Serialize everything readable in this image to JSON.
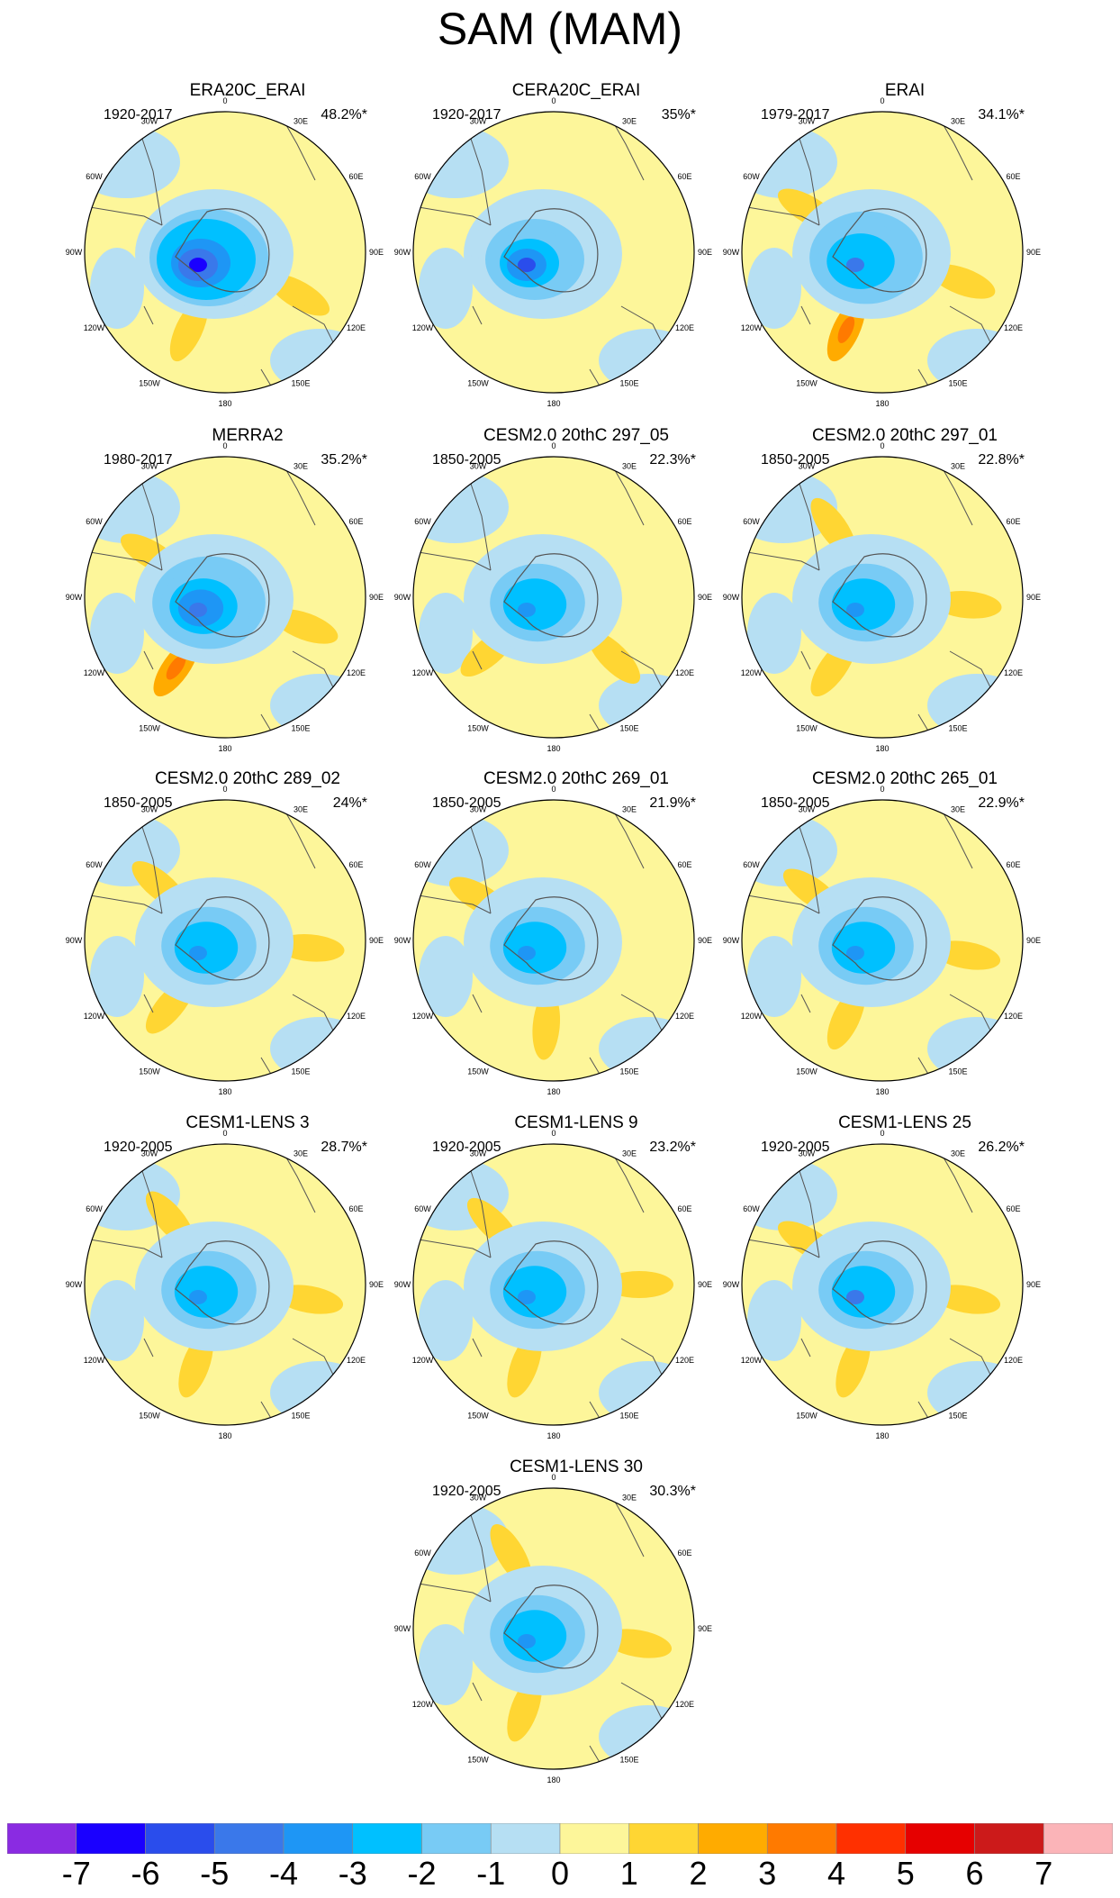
{
  "figure_title": "SAM (MAM)",
  "chart_data": {
    "type": "contour-map-panels",
    "projection": "south-polar-stereographic",
    "panels": [
      {
        "title": "ERA20C_ERAI",
        "period": "1920-2017",
        "variance": "48.2%*",
        "min_value": -6.4,
        "ring": [
          -5,
          -4,
          -3,
          -3,
          -2,
          -1,
          -1
        ],
        "lobes": [
          {
            "lon": 120,
            "value": 1.4
          },
          {
            "lon": 205,
            "value": 1.2
          }
        ]
      },
      {
        "title": "CERA20C_ERAI",
        "period": "1920-2017",
        "variance": "35%*",
        "min_value": -5.2,
        "ring": [
          -4,
          -3,
          -2,
          -2,
          -1,
          -1,
          -1
        ],
        "lobes": []
      },
      {
        "title": "ERAI",
        "period": "1979-2017",
        "variance": "34.1%*",
        "min_value": -4.5,
        "ring": [
          -3,
          -3,
          -2,
          -2,
          -1,
          -1
        ],
        "lobes": [
          {
            "lon": 300,
            "value": 1.6
          },
          {
            "lon": 110,
            "value": 1.6
          },
          {
            "lon": 205,
            "value": 2.3
          }
        ]
      },
      {
        "title": "MERRA2",
        "period": "1980-2017",
        "variance": "35.2%*",
        "min_value": -4.8,
        "ring": [
          -4,
          -3,
          -2,
          -2,
          -1,
          -1
        ],
        "lobes": [
          {
            "lon": 300,
            "value": 1.5
          },
          {
            "lon": 110,
            "value": 1.8
          },
          {
            "lon": 215,
            "value": 2.2
          }
        ]
      },
      {
        "title": "CESM2.0 20thC 297_05",
        "period": "1850-2005",
        "variance": "22.3%*",
        "min_value": -3.4,
        "ring": [
          -3,
          -2,
          -1,
          -1
        ],
        "lobes": [
          {
            "lon": 230,
            "value": 1.6
          },
          {
            "lon": 135,
            "value": 1.4
          }
        ]
      },
      {
        "title": "CESM2.0 20thC 297_01",
        "period": "1850-2005",
        "variance": "22.8%*",
        "min_value": -3.3,
        "ring": [
          -3,
          -2,
          -1,
          -1
        ],
        "lobes": [
          {
            "lon": 95,
            "value": 1.4
          },
          {
            "lon": 215,
            "value": 1.5
          },
          {
            "lon": 325,
            "value": 1.2
          }
        ]
      },
      {
        "title": "CESM2.0 20thC 289_02",
        "period": "1850-2005",
        "variance": "24%*",
        "min_value": -3.2,
        "ring": [
          -3,
          -2,
          -1,
          -1
        ],
        "lobes": [
          {
            "lon": 310,
            "value": 1.5
          },
          {
            "lon": 95,
            "value": 1.5
          },
          {
            "lon": 220,
            "value": 1.4
          }
        ]
      },
      {
        "title": "CESM2.0 20thC 269_01",
        "period": "1850-2005",
        "variance": "21.9%*",
        "min_value": -3.2,
        "ring": [
          -3,
          -2,
          -1,
          -1
        ],
        "lobes": [
          {
            "lon": 185,
            "value": 1.5
          },
          {
            "lon": 300,
            "value": 1.3
          }
        ]
      },
      {
        "title": "CESM2.0 20thC 265_01",
        "period": "1850-2005",
        "variance": "22.9%*",
        "min_value": -3.6,
        "ring": [
          -3,
          -2,
          -1,
          -1
        ],
        "lobes": [
          {
            "lon": 305,
            "value": 1.5
          },
          {
            "lon": 100,
            "value": 1.4
          },
          {
            "lon": 205,
            "value": 1.5
          }
        ]
      },
      {
        "title": "CESM1-LENS 3",
        "period": "1920-2005",
        "variance": "28.7%*",
        "min_value": -3.7,
        "ring": [
          -3,
          -2,
          -1,
          -1
        ],
        "lobes": [
          {
            "lon": 100,
            "value": 1.5
          },
          {
            "lon": 200,
            "value": 1.7
          },
          {
            "lon": 320,
            "value": 1.2
          }
        ]
      },
      {
        "title": "CESM1-LENS 9",
        "period": "1920-2005",
        "variance": "23.2%*",
        "min_value": -3.5,
        "ring": [
          -3,
          -2,
          -1,
          -1
        ],
        "lobes": [
          {
            "lon": 315,
            "value": 1.5
          },
          {
            "lon": 90,
            "value": 1.4
          },
          {
            "lon": 200,
            "value": 1.5
          }
        ]
      },
      {
        "title": "CESM1-LENS 25",
        "period": "1920-2005",
        "variance": "26.2%*",
        "min_value": -4.2,
        "ring": [
          -3,
          -2,
          -1,
          -1
        ],
        "lobes": [
          {
            "lon": 300,
            "value": 1.5
          },
          {
            "lon": 100,
            "value": 1.4
          },
          {
            "lon": 200,
            "value": 1.6
          }
        ]
      },
      {
        "title": "CESM1-LENS 30",
        "period": "1920-2005",
        "variance": "30.3%*",
        "min_value": -3.9,
        "ring": [
          -3,
          -2,
          -1,
          -1
        ],
        "lobes": [
          {
            "lon": 330,
            "value": 1.5
          },
          {
            "lon": 100,
            "value": 1.3
          },
          {
            "lon": 200,
            "value": 1.8
          }
        ]
      }
    ],
    "longitude_labels": [
      "0",
      "30E",
      "60E",
      "90E",
      "120E",
      "150E",
      "180",
      "150W",
      "120W",
      "90W",
      "60W",
      "30W"
    ],
    "colorbar": {
      "levels": [
        -7,
        -6,
        -5,
        -4,
        -3,
        -2,
        -1,
        0,
        1,
        2,
        3,
        4,
        5,
        6,
        7
      ],
      "labels": [
        "-7",
        "-6",
        "-5",
        "-4",
        "-3",
        "-2",
        "-1",
        "0",
        "1",
        "2",
        "3",
        "4",
        "5",
        "6",
        "7"
      ],
      "colors": [
        "#8a2be2",
        "#1a00ff",
        "#2a4dec",
        "#3a78ea",
        "#1e96f5",
        "#00c0ff",
        "#78cbf5",
        "#b6dff3",
        "#fdf69a",
        "#ffd633",
        "#ffab00",
        "#ff7a00",
        "#ff3000",
        "#e60000",
        "#cc1a1a",
        "#fbb4b8"
      ]
    }
  }
}
